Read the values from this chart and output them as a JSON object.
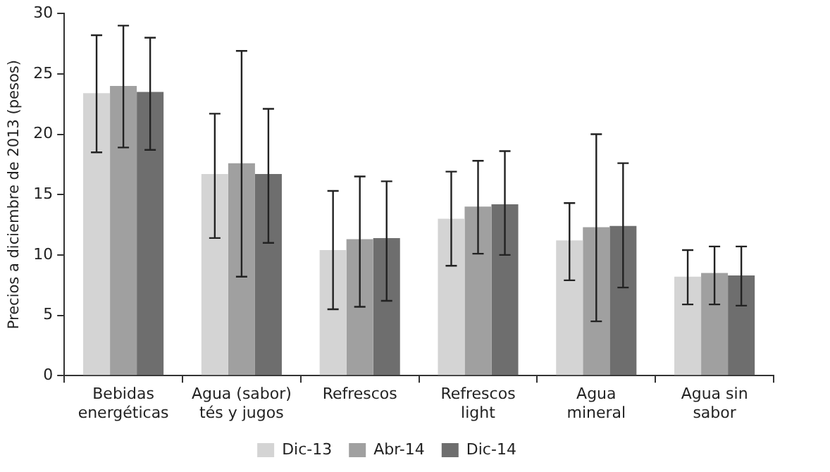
{
  "chart_data": {
    "type": "bar",
    "ylabel": "Precios a diciembre de 2013 (pesos)",
    "categories": [
      "Bebidas\nenergéticas",
      "Agua (sabor)\ntés y jugos",
      "Refrescos",
      "Refrescos\nlight",
      "Agua\nmineral",
      "Agua sin\nsabor"
    ],
    "series": [
      {
        "name": "Dic-13",
        "color": "#d4d4d4",
        "values": [
          23.4,
          16.7,
          10.4,
          13.0,
          11.2,
          8.2
        ],
        "errors": [
          [
            18.5,
            28.2
          ],
          [
            11.4,
            21.7
          ],
          [
            5.5,
            15.3
          ],
          [
            9.1,
            16.9
          ],
          [
            7.9,
            14.3
          ],
          [
            5.9,
            10.4
          ]
        ]
      },
      {
        "name": "Abr-14",
        "color": "#a0a0a0",
        "values": [
          24.0,
          17.6,
          11.3,
          14.0,
          12.3,
          8.5
        ],
        "errors": [
          [
            18.9,
            29.0
          ],
          [
            8.2,
            26.9
          ],
          [
            5.7,
            16.5
          ],
          [
            10.1,
            17.8
          ],
          [
            4.5,
            20.0
          ],
          [
            5.9,
            10.7
          ]
        ]
      },
      {
        "name": "Dic-14",
        "color": "#6e6e6e",
        "values": [
          23.5,
          16.7,
          11.4,
          14.2,
          12.4,
          8.3
        ],
        "errors": [
          [
            18.7,
            28.0
          ],
          [
            11.0,
            22.1
          ],
          [
            6.2,
            16.1
          ],
          [
            10.0,
            18.6
          ],
          [
            7.3,
            17.6
          ],
          [
            5.8,
            10.7
          ]
        ]
      }
    ],
    "ylim": [
      0,
      30
    ],
    "yticks": [
      0,
      5,
      10,
      15,
      20,
      25,
      30
    ],
    "grid": false,
    "legend": "bottom"
  }
}
